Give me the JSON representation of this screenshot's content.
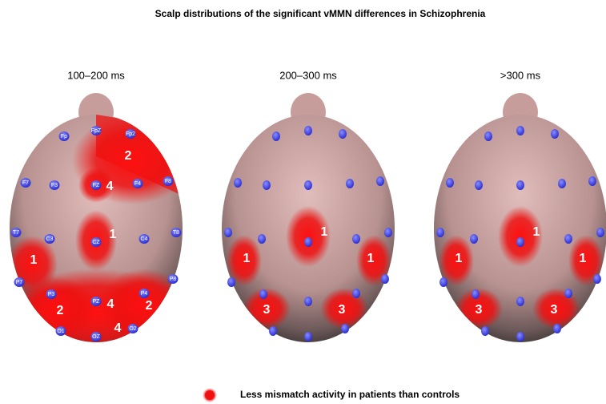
{
  "title": "Scalp distributions of the significant vMMN differences in Schizophrenia",
  "panels": [
    {
      "label": "100–200 ms",
      "electrodes": [
        "Fp",
        "FpZ",
        "Fp2",
        "F7",
        "F3",
        "FZ",
        "F4",
        "F8",
        "T7",
        "C3",
        "CZ",
        "C4",
        "T8",
        "P7",
        "P3",
        "PZ",
        "P4",
        "P8",
        "O1",
        "OZ",
        "O2"
      ],
      "regions": [
        "2",
        "4",
        "1",
        "1",
        "2",
        "4",
        "2",
        "4"
      ]
    },
    {
      "label": "200–300 ms",
      "regions": [
        "1",
        "1",
        "1",
        "3",
        "3"
      ]
    },
    {
      "label": ">300 ms",
      "regions": [
        "1",
        "1",
        "1",
        "3",
        "3"
      ]
    }
  ],
  "legend": {
    "label": "Less mismatch activity in patients than controls"
  }
}
